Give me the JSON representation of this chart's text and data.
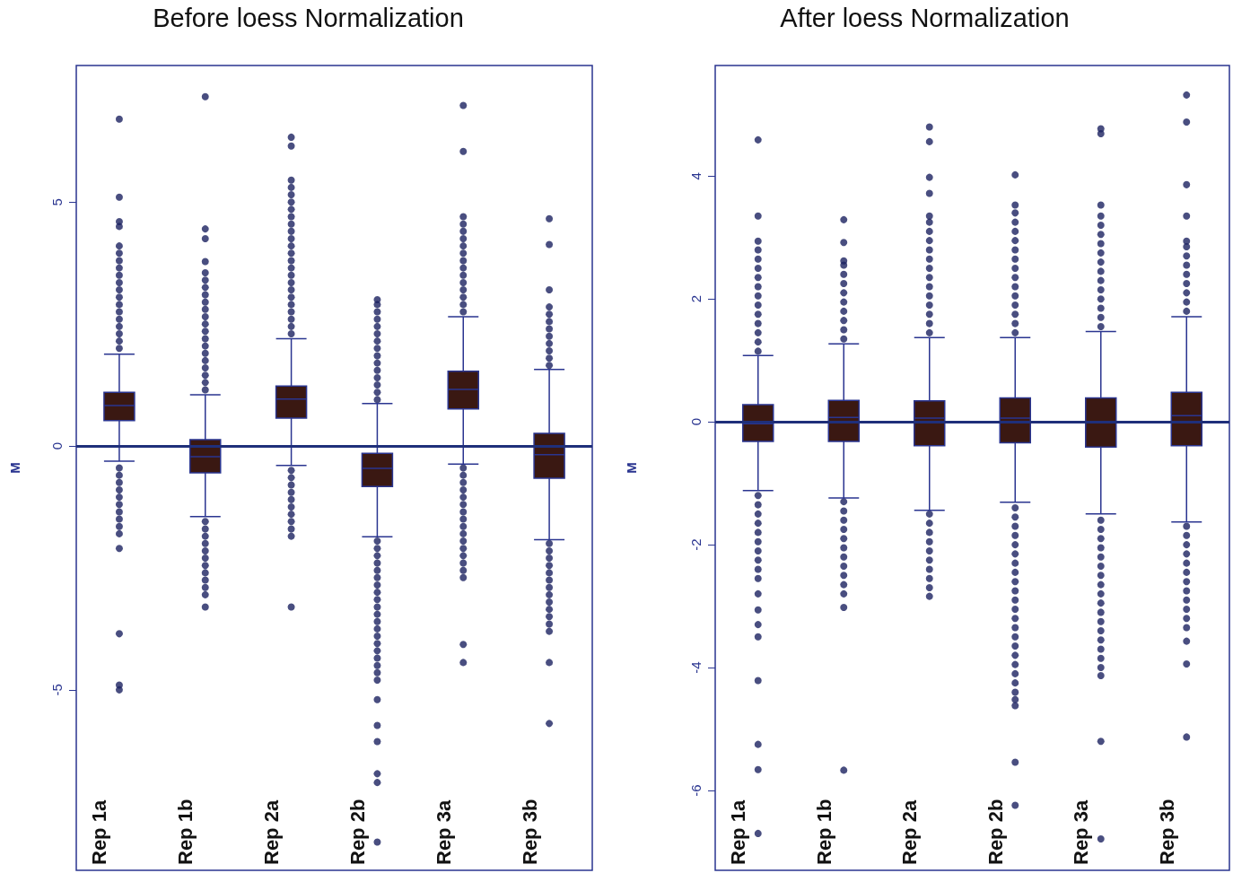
{
  "chart_data": [
    {
      "type": "box",
      "title": "Before loess Normalization",
      "ylabel": "M",
      "categories": [
        "Rep 1a",
        "Rep 1b",
        "Rep 2a",
        "Rep 2b",
        "Rep 3a",
        "Rep 3b"
      ],
      "color": "#3a1812",
      "ylim": [
        -8.7,
        7.8
      ],
      "yticks": [
        -5,
        0,
        5
      ],
      "grid": false,
      "ref_lines": [
        {
          "axis": "y",
          "value": 0,
          "color": "#1f2f7a"
        }
      ],
      "boxes": [
        {
          "low": -0.31,
          "q1": 0.52,
          "median": 0.83,
          "q3": 1.1,
          "high": 1.88,
          "outliers": [
            2,
            2.15,
            2.3,
            2.45,
            2.6,
            2.75,
            2.9,
            3.05,
            3.2,
            3.35,
            3.5,
            3.65,
            3.8,
            3.95,
            4.1,
            4.5,
            4.6,
            5.1,
            6.7,
            -0.45,
            -0.6,
            -0.75,
            -0.9,
            -1.05,
            -1.2,
            -1.35,
            -1.5,
            -1.65,
            -1.8,
            -2.1,
            -3.85,
            -4.9,
            -5
          ]
        },
        {
          "low": -1.45,
          "q1": -0.55,
          "median": -0.22,
          "q3": 0.13,
          "high": 1.05,
          "outliers": [
            1.15,
            1.3,
            1.45,
            1.6,
            1.75,
            1.9,
            2.05,
            2.2,
            2.35,
            2.5,
            2.65,
            2.8,
            2.95,
            3.1,
            3.25,
            3.4,
            3.55,
            3.78,
            4.25,
            4.45,
            7.16,
            -1.55,
            -1.7,
            -1.85,
            -2,
            -2.15,
            -2.3,
            -2.45,
            -2.6,
            -2.75,
            -2.9,
            -3.05,
            -3.3
          ]
        },
        {
          "low": -0.4,
          "q1": 0.57,
          "median": 0.96,
          "q3": 1.23,
          "high": 2.2,
          "outliers": [
            2.3,
            2.45,
            2.6,
            2.75,
            2.9,
            3.05,
            3.2,
            3.35,
            3.5,
            3.65,
            3.8,
            3.95,
            4.1,
            4.25,
            4.4,
            4.55,
            4.7,
            4.85,
            5,
            5.15,
            5.3,
            5.45,
            6.15,
            6.33,
            -0.5,
            -0.65,
            -0.8,
            -0.95,
            -1.1,
            -1.25,
            -1.4,
            -1.55,
            -1.7,
            -1.85,
            -3.3
          ]
        },
        {
          "low": -1.86,
          "q1": -0.83,
          "median": -0.46,
          "q3": -0.15,
          "high": 0.87,
          "outliers": [
            0.95,
            1.1,
            1.25,
            1.4,
            1.55,
            1.7,
            1.85,
            2,
            2.15,
            2.3,
            2.45,
            2.6,
            2.75,
            2.9,
            3,
            -1.95,
            -2.1,
            -2.25,
            -2.4,
            -2.55,
            -2.7,
            -2.85,
            -3,
            -3.15,
            -3.3,
            -3.45,
            -3.6,
            -3.75,
            -3.9,
            -4.05,
            -4.2,
            -4.35,
            -4.5,
            -4.65,
            -4.8,
            -5.2,
            -5.73,
            -6.06,
            -6.72,
            -6.9,
            -8.12
          ]
        },
        {
          "low": -0.37,
          "q1": 0.76,
          "median": 1.16,
          "q3": 1.53,
          "high": 2.65,
          "outliers": [
            2.75,
            2.9,
            3.05,
            3.2,
            3.35,
            3.5,
            3.65,
            3.8,
            3.95,
            4.1,
            4.25,
            4.4,
            4.55,
            4.7,
            6.04,
            6.98,
            -0.45,
            -0.6,
            -0.75,
            -0.9,
            -1.05,
            -1.2,
            -1.35,
            -1.5,
            -1.65,
            -1.8,
            -1.95,
            -2.1,
            -2.25,
            -2.4,
            -2.55,
            -2.7,
            -4.07,
            -4.44
          ]
        },
        {
          "low": -1.92,
          "q1": -0.66,
          "median": -0.18,
          "q3": 0.26,
          "high": 1.57,
          "outliers": [
            1.65,
            1.8,
            1.95,
            2.1,
            2.25,
            2.4,
            2.55,
            2.7,
            2.85,
            3.2,
            4.13,
            4.66,
            -2,
            -2.15,
            -2.3,
            -2.45,
            -2.6,
            -2.75,
            -2.9,
            -3.05,
            -3.2,
            -3.35,
            -3.5,
            -3.65,
            -3.8,
            -4.44,
            -5.69
          ]
        }
      ]
    },
    {
      "type": "box",
      "title": "After loess Normalization",
      "ylabel": "M",
      "categories": [
        "Rep 1a",
        "Rep 1b",
        "Rep 2a",
        "Rep 2b",
        "Rep 3a",
        "Rep 3b"
      ],
      "color": "#3a1812",
      "ylim": [
        -7.3,
        5.8
      ],
      "yticks": [
        -6,
        -4,
        -2,
        0,
        2,
        4
      ],
      "grid": false,
      "ref_lines": [
        {
          "axis": "y",
          "value": 0,
          "color": "#1f2f7a"
        }
      ],
      "boxes": [
        {
          "low": -1.12,
          "q1": -0.32,
          "median": -0.03,
          "q3": 0.28,
          "high": 1.08,
          "outliers": [
            1.15,
            1.3,
            1.45,
            1.6,
            1.75,
            1.9,
            2.05,
            2.2,
            2.35,
            2.5,
            2.65,
            2.8,
            2.94,
            3.35,
            4.59,
            -1.2,
            -1.35,
            -1.5,
            -1.65,
            -1.8,
            -1.95,
            -2.1,
            -2.25,
            -2.4,
            -2.55,
            -2.8,
            -3.06,
            -3.3,
            -3.5,
            -4.21,
            -5.25,
            -5.66,
            -6.7
          ]
        },
        {
          "low": -1.24,
          "q1": -0.32,
          "median": 0.07,
          "q3": 0.35,
          "high": 1.27,
          "outliers": [
            1.35,
            1.5,
            1.65,
            1.8,
            1.95,
            2.1,
            2.25,
            2.4,
            2.55,
            2.62,
            2.92,
            3.29,
            -1.3,
            -1.45,
            -1.6,
            -1.75,
            -1.9,
            -2.05,
            -2.2,
            -2.35,
            -2.5,
            -2.65,
            -2.8,
            -3.02,
            -5.67
          ]
        },
        {
          "low": -1.44,
          "q1": -0.39,
          "median": 0.06,
          "q3": 0.34,
          "high": 1.37,
          "outliers": [
            1.45,
            1.6,
            1.75,
            1.9,
            2.05,
            2.2,
            2.35,
            2.5,
            2.65,
            2.8,
            2.95,
            3.1,
            3.25,
            3.35,
            3.72,
            3.98,
            4.56,
            4.8,
            -1.5,
            -1.65,
            -1.8,
            -1.95,
            -2.1,
            -2.25,
            -2.4,
            -2.55,
            -2.7,
            -2.84
          ]
        },
        {
          "low": -1.31,
          "q1": -0.34,
          "median": 0.06,
          "q3": 0.39,
          "high": 1.37,
          "outliers": [
            1.45,
            1.6,
            1.75,
            1.9,
            2.05,
            2.2,
            2.35,
            2.5,
            2.65,
            2.8,
            2.95,
            3.1,
            3.25,
            3.4,
            3.53,
            4.02,
            -1.4,
            -1.55,
            -1.7,
            -1.85,
            -2,
            -2.15,
            -2.3,
            -2.45,
            -2.6,
            -2.75,
            -2.9,
            -3.05,
            -3.2,
            -3.35,
            -3.5,
            -3.65,
            -3.8,
            -3.95,
            -4.1,
            -4.25,
            -4.4,
            -4.52,
            -4.62,
            -5.54,
            -6.24
          ]
        },
        {
          "low": -1.5,
          "q1": -0.41,
          "median": 0,
          "q3": 0.39,
          "high": 1.47,
          "outliers": [
            1.55,
            1.7,
            1.85,
            2,
            2.15,
            2.3,
            2.45,
            2.6,
            2.75,
            2.9,
            3.05,
            3.2,
            3.35,
            3.53,
            4.69,
            4.77,
            -1.6,
            -1.75,
            -1.9,
            -2.05,
            -2.2,
            -2.35,
            -2.5,
            -2.65,
            -2.8,
            -2.95,
            -3.1,
            -3.25,
            -3.4,
            -3.55,
            -3.7,
            -3.85,
            -4,
            -4.13,
            -5.2,
            -6.79
          ]
        },
        {
          "low": -1.63,
          "q1": -0.39,
          "median": 0.1,
          "q3": 0.48,
          "high": 1.71,
          "outliers": [
            1.8,
            1.95,
            2.1,
            2.25,
            2.4,
            2.55,
            2.7,
            2.85,
            2.94,
            3.35,
            3.86,
            4.88,
            5.32,
            -1.7,
            -1.85,
            -2,
            -2.15,
            -2.3,
            -2.45,
            -2.6,
            -2.75,
            -2.9,
            -3.05,
            -3.2,
            -3.35,
            -3.57,
            -3.94,
            -5.13
          ]
        }
      ]
    }
  ]
}
